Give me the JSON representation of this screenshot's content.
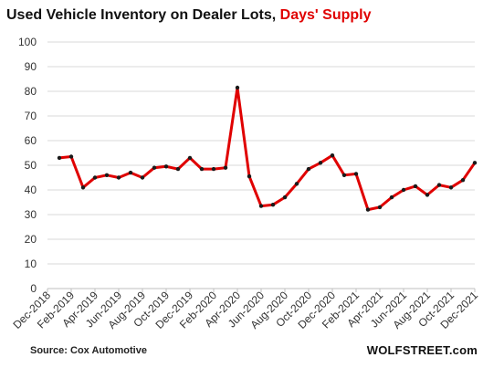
{
  "title": {
    "main": "Used Vehicle Inventory on Dealer Lots, ",
    "highlight": "Days' Supply"
  },
  "source": "Source: Cox Automotive",
  "brand": "WOLFSTREET.com",
  "colors": {
    "line": "#e00000",
    "marker": "#1a1a1a",
    "highlight": "#e00000",
    "grid": "#d9d9d9"
  },
  "chart_data": {
    "type": "line",
    "title": "Used Vehicle Inventory on Dealer Lots, Days' Supply",
    "xlabel": "",
    "ylabel": "",
    "ylim": [
      0,
      100
    ],
    "yticks": [
      0,
      10,
      20,
      30,
      40,
      50,
      60,
      70,
      80,
      90,
      100
    ],
    "grid": true,
    "legend": "none",
    "x_tick_labels": [
      "Dec-2018",
      "Feb-2019",
      "Apr-2019",
      "Jun-2019",
      "Aug-2019",
      "Oct-2019",
      "Dec-2019",
      "Feb-2020",
      "Apr-2020",
      "Jun-2020",
      "Aug-2020",
      "Oct-2020",
      "Dec-2020",
      "Feb-2021",
      "Apr-2021",
      "Jun-2021",
      "Aug-2021",
      "Oct-2021",
      "Dec-2021"
    ],
    "x": [
      "Jan-2019",
      "Feb-2019",
      "Mar-2019",
      "Apr-2019",
      "May-2019",
      "Jun-2019",
      "Jul-2019",
      "Aug-2019",
      "Sep-2019",
      "Oct-2019",
      "Nov-2019",
      "Dec-2019",
      "Jan-2020",
      "Feb-2020",
      "Mar-2020",
      "Apr-2020",
      "May-2020",
      "Jun-2020",
      "Jul-2020",
      "Aug-2020",
      "Sep-2020",
      "Oct-2020",
      "Nov-2020",
      "Dec-2020",
      "Jan-2021",
      "Feb-2021",
      "Mar-2021",
      "Apr-2021",
      "May-2021",
      "Jun-2021",
      "Jul-2021",
      "Aug-2021",
      "Sep-2021",
      "Oct-2021",
      "Nov-2021",
      "Dec-2021"
    ],
    "series": [
      {
        "values": [
          53,
          53.5,
          41,
          45,
          46,
          45,
          47,
          45,
          49,
          49.5,
          48.5,
          53,
          48.5,
          48.5,
          49,
          81.5,
          45.5,
          33.5,
          34,
          37,
          42.5,
          48.5,
          51,
          54,
          46,
          46.5,
          32,
          33,
          37,
          40,
          41.5,
          38,
          42,
          41,
          44,
          51
        ]
      }
    ]
  }
}
